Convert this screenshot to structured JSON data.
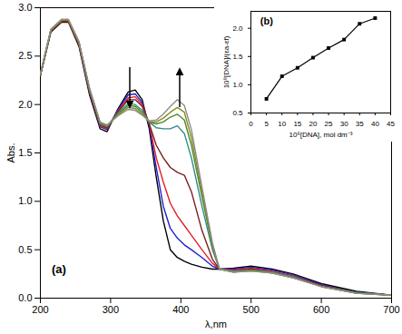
{
  "chart_data": [
    {
      "type": "line",
      "x_label": "λ,nm",
      "y_label": "Abs.",
      "xlim": [
        200,
        700
      ],
      "xticks": [
        200,
        300,
        400,
        500,
        600,
        700
      ],
      "ylim": [
        0,
        3
      ],
      "yticks": [
        {
          "value": 0,
          "label": "0.0"
        },
        0.5,
        {
          "value": 1,
          "label": "1.0"
        },
        1.5,
        {
          "value": 2,
          "label": "2.0"
        },
        2.5,
        {
          "value": 3,
          "label": "3.0"
        }
      ],
      "annotations": [
        {
          "text": "(a)",
          "x": 216,
          "y": 0.3
        }
      ],
      "x": [
        200,
        215,
        230,
        240,
        255,
        270,
        285,
        295,
        310,
        325,
        335,
        345,
        355,
        365,
        375,
        385,
        395,
        405,
        415,
        430,
        445,
        455,
        475,
        500,
        530,
        560,
        600,
        650,
        700
      ],
      "series": [
        {
          "color": "#000000",
          "values": [
            2.3,
            2.75,
            2.85,
            2.85,
            2.6,
            2.1,
            1.75,
            1.72,
            1.95,
            2.13,
            2.15,
            2.05,
            1.75,
            1.25,
            0.8,
            0.5,
            0.42,
            0.38,
            0.35,
            0.32,
            0.3,
            0.3,
            0.31,
            0.33,
            0.3,
            0.25,
            0.15,
            0.07,
            0.03
          ]
        },
        {
          "color": "#1f1fd6",
          "values": [
            2.3,
            2.76,
            2.86,
            2.86,
            2.62,
            2.12,
            1.77,
            1.74,
            1.94,
            2.1,
            2.11,
            2.02,
            1.78,
            1.35,
            0.95,
            0.72,
            0.62,
            0.55,
            0.5,
            0.42,
            0.33,
            0.3,
            0.3,
            0.32,
            0.29,
            0.24,
            0.14,
            0.06,
            0.03
          ]
        },
        {
          "color": "#e0202a",
          "values": [
            2.3,
            2.76,
            2.86,
            2.86,
            2.62,
            2.13,
            1.78,
            1.75,
            1.93,
            2.07,
            2.08,
            2.0,
            1.8,
            1.45,
            1.2,
            0.98,
            0.85,
            0.75,
            0.65,
            0.5,
            0.36,
            0.3,
            0.29,
            0.31,
            0.28,
            0.23,
            0.13,
            0.06,
            0.03
          ]
        },
        {
          "color": "#7a1e1e",
          "values": [
            2.31,
            2.77,
            2.86,
            2.86,
            2.63,
            2.14,
            1.79,
            1.76,
            1.92,
            2.05,
            2.05,
            1.98,
            1.8,
            1.58,
            1.45,
            1.35,
            1.3,
            1.27,
            1.1,
            0.7,
            0.4,
            0.3,
            0.28,
            0.3,
            0.27,
            0.22,
            0.13,
            0.06,
            0.03
          ]
        },
        {
          "color": "#2e8b8b",
          "values": [
            2.31,
            2.77,
            2.87,
            2.87,
            2.64,
            2.15,
            1.8,
            1.77,
            1.91,
            2.01,
            2.0,
            1.94,
            1.82,
            1.76,
            1.75,
            1.75,
            1.78,
            1.7,
            1.45,
            0.95,
            0.5,
            0.3,
            0.28,
            0.29,
            0.27,
            0.22,
            0.12,
            0.06,
            0.03
          ]
        },
        {
          "color": "#4a8a2a",
          "values": [
            2.31,
            2.77,
            2.87,
            2.87,
            2.64,
            2.16,
            1.81,
            1.78,
            1.9,
            1.99,
            1.98,
            1.92,
            1.82,
            1.8,
            1.82,
            1.87,
            1.9,
            1.84,
            1.58,
            1.05,
            0.53,
            0.3,
            0.27,
            0.29,
            0.26,
            0.21,
            0.12,
            0.05,
            0.03
          ]
        },
        {
          "color": "#8a8a1e",
          "values": [
            2.31,
            2.77,
            2.87,
            2.87,
            2.64,
            2.16,
            1.81,
            1.78,
            1.89,
            1.97,
            1.96,
            1.9,
            1.82,
            1.82,
            1.86,
            1.92,
            1.97,
            1.92,
            1.66,
            1.1,
            0.55,
            0.3,
            0.27,
            0.28,
            0.26,
            0.21,
            0.12,
            0.05,
            0.03
          ]
        },
        {
          "color": "#8c8c8c",
          "values": [
            2.32,
            2.78,
            2.88,
            2.88,
            2.65,
            2.17,
            1.82,
            1.79,
            1.88,
            1.95,
            1.94,
            1.89,
            1.83,
            1.84,
            1.9,
            1.98,
            2.05,
            1.99,
            1.74,
            1.15,
            0.57,
            0.3,
            0.27,
            0.28,
            0.26,
            0.21,
            0.12,
            0.05,
            0.03
          ]
        }
      ]
    },
    {
      "type": "line",
      "marker": "square",
      "color": "#000000",
      "x_label": "10⁶[DNA], mol dm⁻³",
      "y_label": "10⁹[DNA]/(εa-εf)",
      "xlim": [
        0,
        45
      ],
      "xticks": [
        0,
        5,
        10,
        15,
        20,
        25,
        30,
        35,
        40,
        45
      ],
      "ylim": [
        0.5,
        2.3
      ],
      "yticks": [
        0.5,
        {
          "value": 1,
          "label": "1.0"
        },
        1.5,
        {
          "value": 2,
          "label": "2.0"
        }
      ],
      "annotations": [
        {
          "text": "(b)",
          "x": 3,
          "y": 2.12
        }
      ],
      "x": [
        5,
        10,
        15,
        20,
        25,
        30,
        35,
        40
      ],
      "values": [
        0.75,
        1.15,
        1.3,
        1.48,
        1.65,
        1.8,
        2.08,
        2.18
      ]
    }
  ]
}
